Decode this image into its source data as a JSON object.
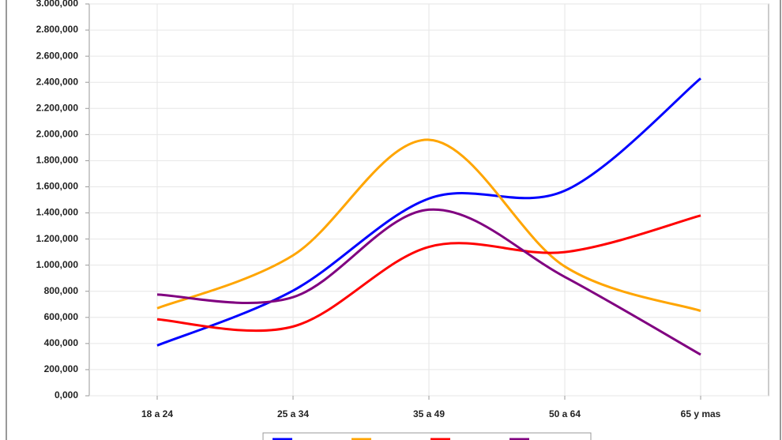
{
  "chart_data": {
    "type": "line",
    "smooth": true,
    "grid": true,
    "categories": [
      "18 a 24",
      "25 a 34",
      "35 a 49",
      "50 a 64",
      "65 y mas"
    ],
    "series": [
      {
        "color": "#0000ff",
        "values": [
          385,
          805,
          1510,
          1570,
          2430
        ]
      },
      {
        "color": "#ffa500",
        "values": [
          670,
          1075,
          1960,
          990,
          650
        ]
      },
      {
        "color": "#ff0000",
        "values": [
          585,
          530,
          1140,
          1100,
          1380
        ]
      },
      {
        "color": "#800080",
        "values": [
          775,
          755,
          1425,
          910,
          315
        ]
      }
    ],
    "ylim": [
      0,
      3000
    ],
    "yticks": [
      {
        "value": 0,
        "label": "0,000"
      },
      {
        "value": 200,
        "label": "200,000"
      },
      {
        "value": 400,
        "label": "400,000"
      },
      {
        "value": 600,
        "label": "600,000"
      },
      {
        "value": 800,
        "label": "800,000"
      },
      {
        "value": 1000,
        "label": "1.000,000"
      },
      {
        "value": 1200,
        "label": "1.200,000"
      },
      {
        "value": 1400,
        "label": "1.400,000"
      },
      {
        "value": 1600,
        "label": "1.600,000"
      },
      {
        "value": 1800,
        "label": "1.800,000"
      },
      {
        "value": 2000,
        "label": "2.000,000"
      },
      {
        "value": 2200,
        "label": "2.200,000"
      },
      {
        "value": 2400,
        "label": "2.400,000"
      },
      {
        "value": 2600,
        "label": "2.600,000"
      },
      {
        "value": 2800,
        "label": "2.800,000"
      },
      {
        "value": 3000,
        "label": "3.000,000"
      }
    ]
  }
}
